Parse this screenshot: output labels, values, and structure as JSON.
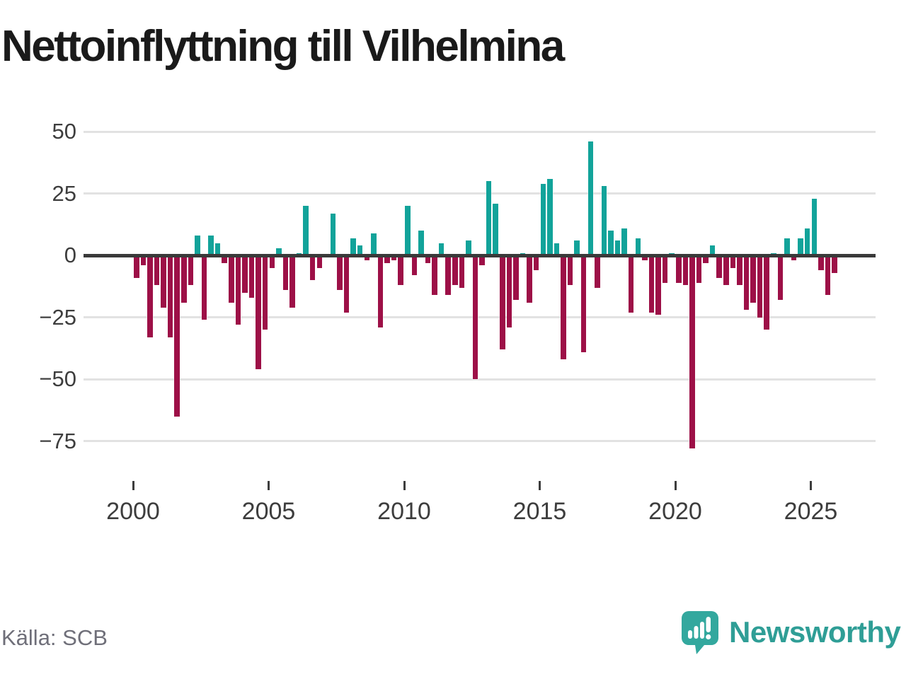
{
  "title": "Nettoinflyttning till Vilhelmina",
  "source": "Källa: SCB",
  "brand": {
    "name": "Newsworthy",
    "icon": "newsworthy-speech-bubble-bar-chart-icon"
  },
  "colors": {
    "positive_bar": "#12a39a",
    "negative_bar": "#9d1047",
    "zero_line": "#3a3a3a",
    "gridline": "#e2e2e2",
    "axis_text": "#3d3d3d",
    "title_text": "#1a1a1a",
    "source_text": "#6f6f79",
    "brand_teal": "#2f9e96"
  },
  "chart_data": {
    "type": "bar",
    "title": "Nettoinflyttning till Vilhelmina",
    "frequency": "quarterly",
    "xlabel": "",
    "ylabel": "",
    "grid": "horizontal",
    "legend": "none",
    "x_range": [
      "2000Q1",
      "2025Q4"
    ],
    "ylim": [
      -85,
      55
    ],
    "x_ticks": [
      2000,
      2005,
      2010,
      2015,
      2020,
      2025
    ],
    "x_tick_labels": [
      "2000",
      "2005",
      "2010",
      "2015",
      "2020",
      "2025"
    ],
    "y_ticks": [
      50,
      25,
      0,
      -25,
      -50,
      -75
    ],
    "y_tick_labels": [
      "50",
      "25",
      "0",
      "−25",
      "−50",
      "−75"
    ],
    "values_by_year": {
      "2000": [
        -9,
        -4,
        -33,
        -12
      ],
      "2001": [
        -21,
        -33,
        -65,
        -19
      ],
      "2002": [
        -12,
        8,
        -26,
        8
      ],
      "2003": [
        5,
        -3,
        -19,
        -28
      ],
      "2004": [
        -15,
        -17,
        -46,
        -30
      ],
      "2005": [
        -5,
        3,
        -14,
        -21
      ],
      "2006": [
        1,
        20,
        -10,
        -5
      ],
      "2007": [
        0,
        17,
        -14,
        -23
      ],
      "2008": [
        7,
        4,
        -2,
        9
      ],
      "2009": [
        -29,
        -3,
        -2,
        -12
      ],
      "2010": [
        20,
        -8,
        10,
        -3
      ],
      "2011": [
        -16,
        5,
        -16,
        -12
      ],
      "2012": [
        -13,
        6,
        -50,
        -4
      ],
      "2013": [
        30,
        21,
        -38,
        -29
      ],
      "2014": [
        -18,
        1,
        -19,
        -6
      ],
      "2015": [
        29,
        31,
        5,
        -42
      ],
      "2016": [
        -12,
        6,
        -39,
        46
      ],
      "2017": [
        -13,
        28,
        10,
        6
      ],
      "2018": [
        11,
        -23,
        7,
        -2
      ],
      "2019": [
        -23,
        -24,
        -11,
        1
      ],
      "2020": [
        -11,
        -12,
        -78,
        -11
      ],
      "2021": [
        -3,
        4,
        -9,
        -12
      ],
      "2022": [
        -5,
        -12,
        -22,
        -19
      ],
      "2023": [
        -25,
        -30,
        1,
        -18
      ],
      "2024": [
        7,
        -2,
        7,
        11
      ],
      "2025": [
        23,
        -6,
        -16,
        -7
      ]
    }
  }
}
